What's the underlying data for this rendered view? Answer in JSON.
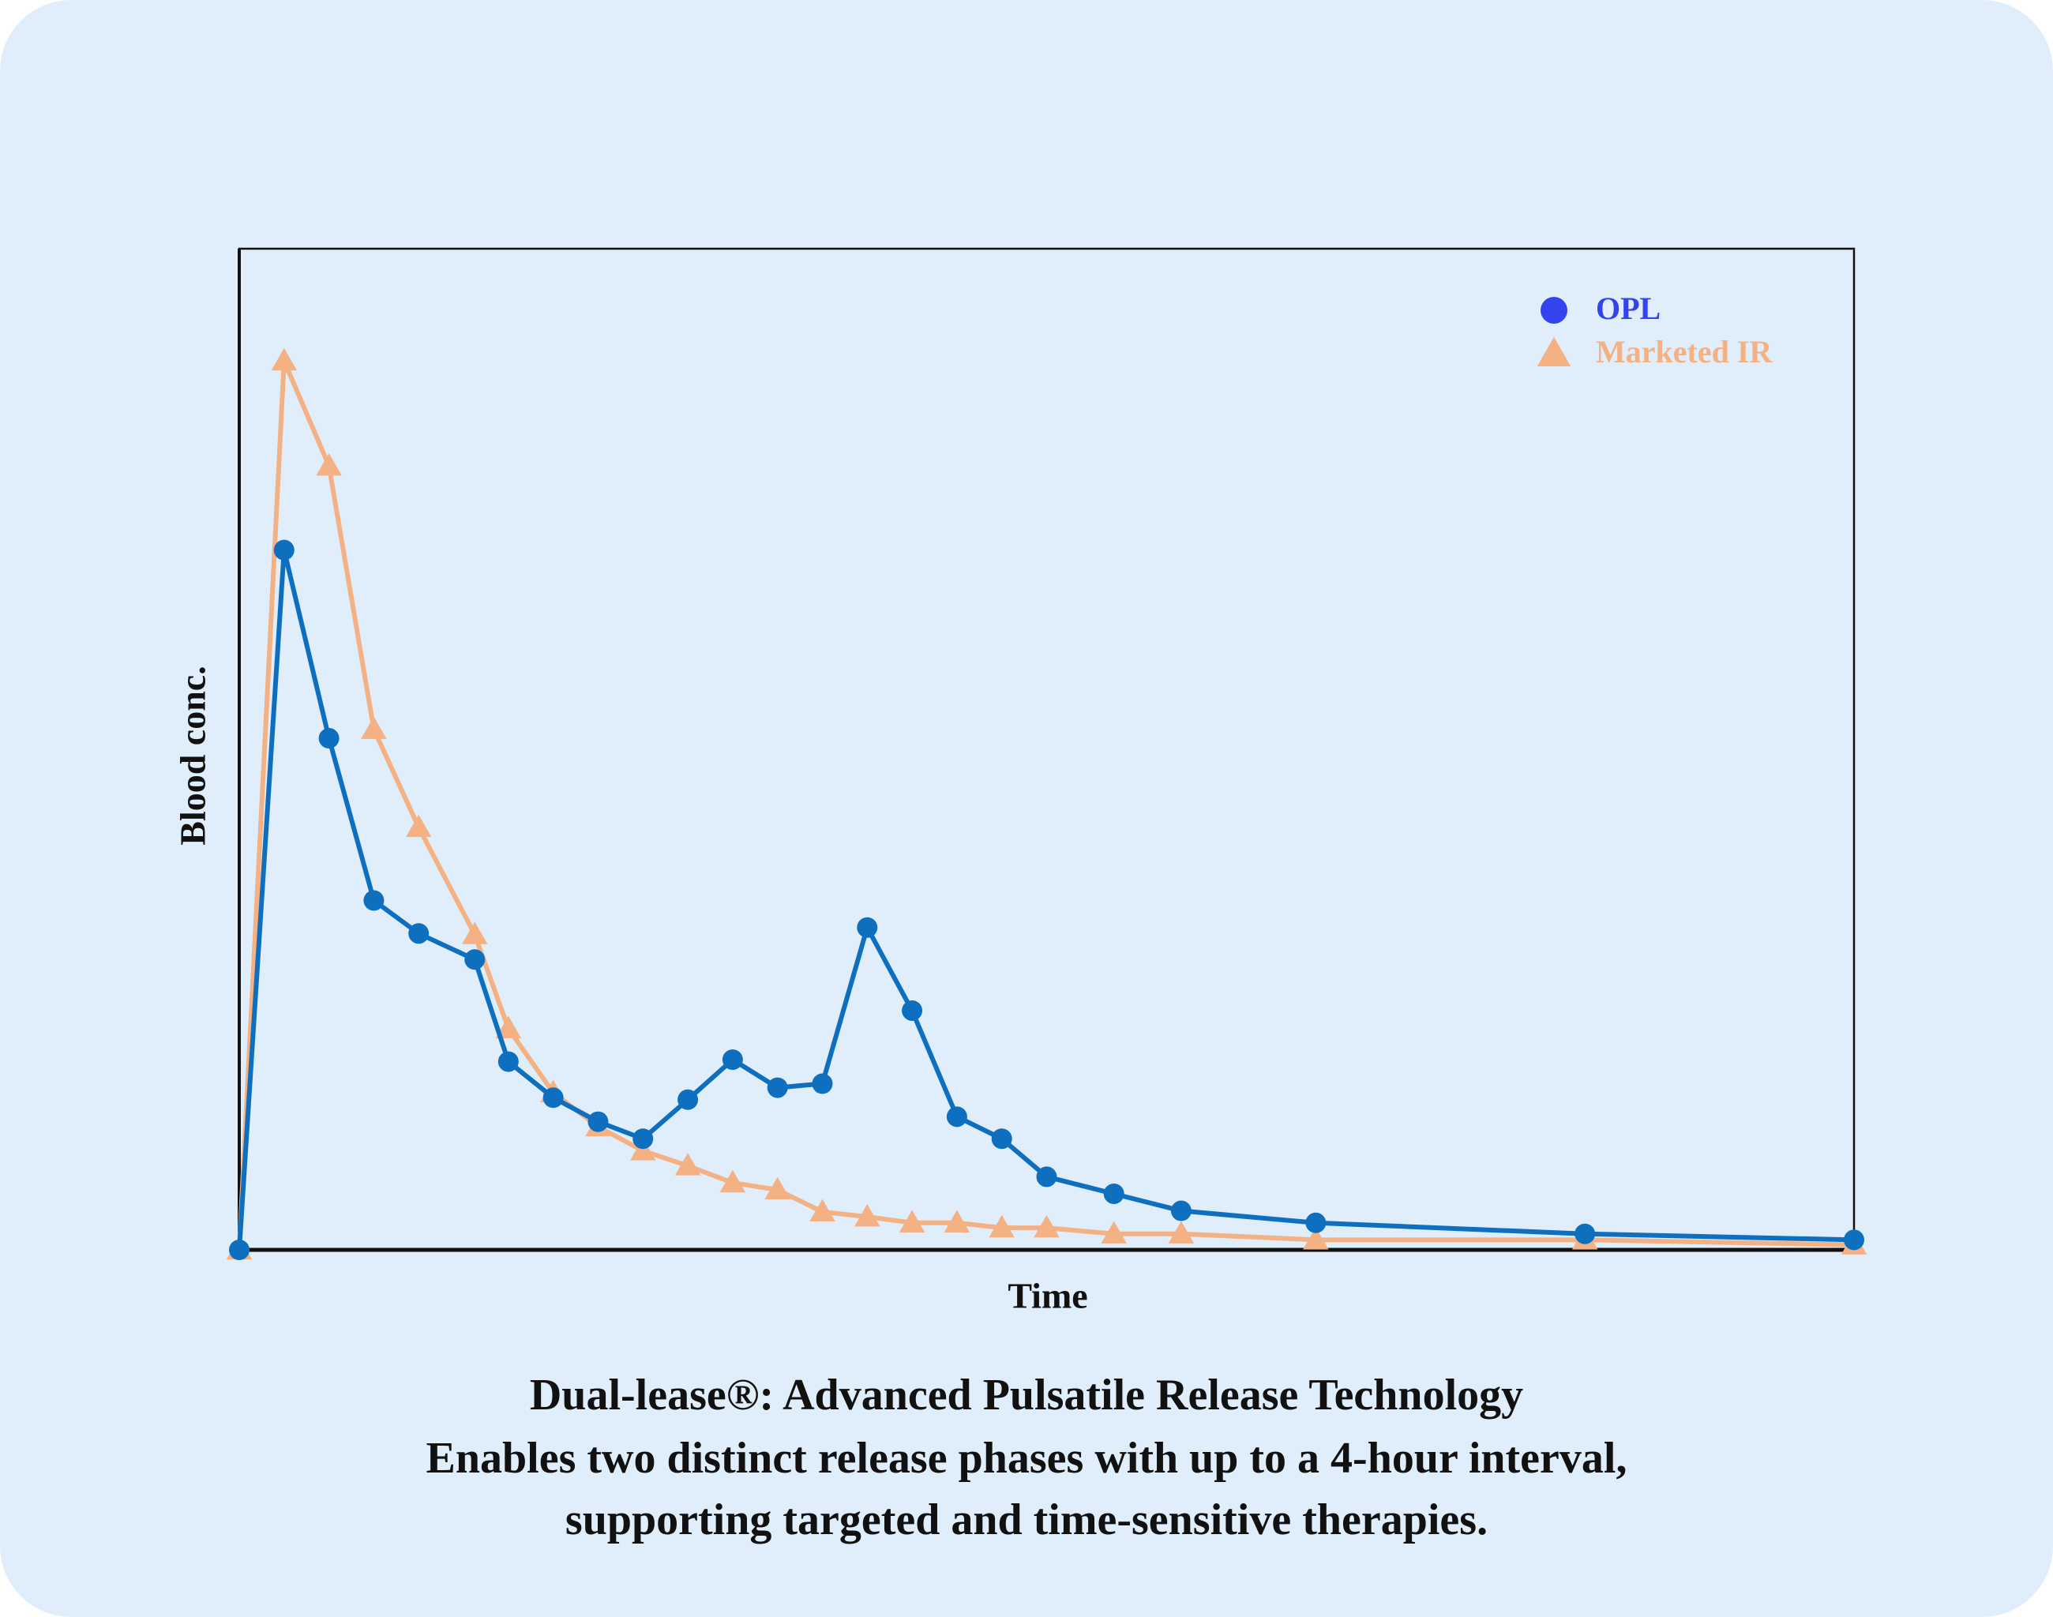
{
  "chart_data": {
    "type": "line",
    "title_lines": [
      "Dual-lease®: Advanced Pulsatile Release Technology",
      "Enables two distinct release phases with up to a 4-hour interval,",
      "supporting targeted and time-sensitive therapies."
    ],
    "x_label": "Time",
    "y_label": "Blood conc.",
    "x": [
      0,
      1,
      2,
      3,
      4,
      5.25,
      6,
      7,
      8,
      9,
      10,
      11,
      12,
      13,
      14,
      15,
      16,
      17,
      18,
      19.5,
      21,
      24,
      30,
      36
    ],
    "xlim": [
      0,
      36
    ],
    "ylim": [
      0,
      100
    ],
    "legend": "upper right",
    "series": [
      {
        "name": "OPL",
        "color": "#0f6fbf",
        "legend_color": "#3344ee",
        "marker": "circle",
        "values": [
          0,
          69.9,
          51.1,
          34.9,
          31.6,
          29.0,
          18.8,
          15.2,
          12.8,
          11.1,
          15.0,
          19.0,
          16.2,
          16.6,
          32.2,
          23.9,
          13.3,
          11.1,
          7.3,
          5.6,
          3.9,
          2.7,
          1.6,
          1.0
        ]
      },
      {
        "name": "Marketed IR",
        "color": "#f4b183",
        "legend_color": "#f4b183",
        "marker": "triangle",
        "values": [
          0,
          88.8,
          78.3,
          52.0,
          42.2,
          31.5,
          22.1,
          15.7,
          12.3,
          9.9,
          8.4,
          6.7,
          6.0,
          3.8,
          3.3,
          2.7,
          2.7,
          2.2,
          2.2,
          1.6,
          1.6,
          1.0,
          1.0,
          0.5
        ]
      }
    ]
  }
}
